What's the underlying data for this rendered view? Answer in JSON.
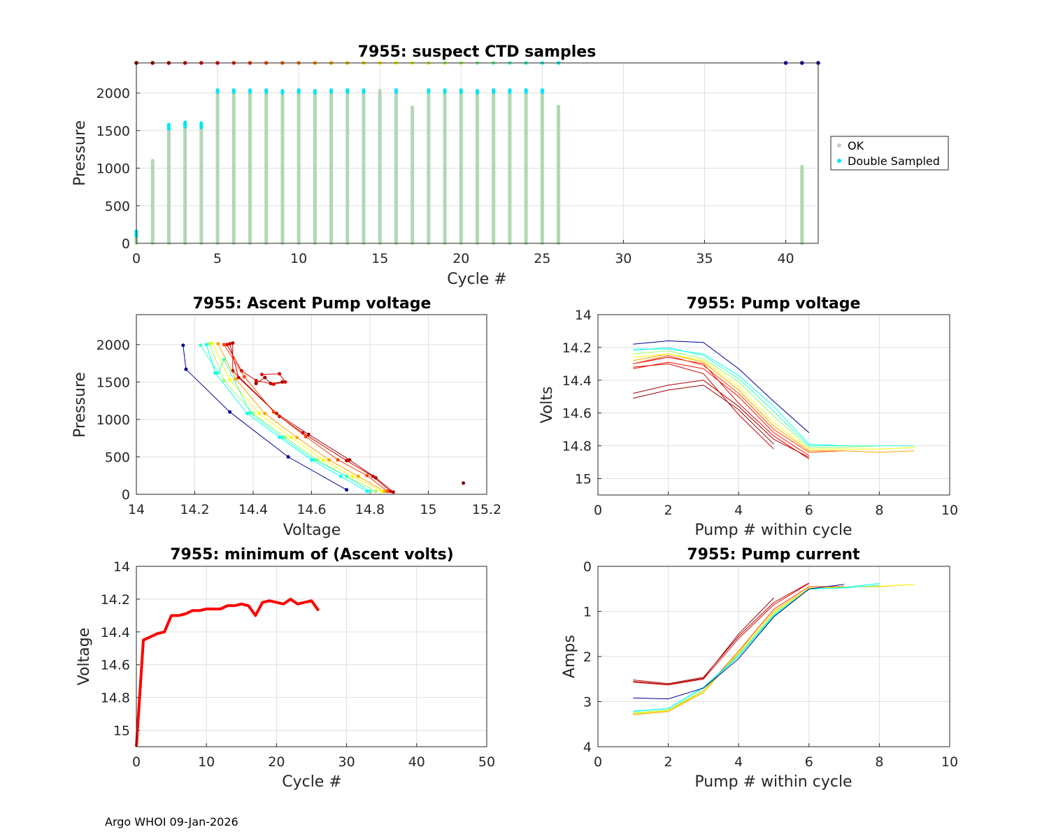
{
  "footer": "Argo WHOI 09-Jan-2026",
  "colors": {
    "ok": "#b2d8b2",
    "double": "#00e5ff",
    "min_line": "#ff0000",
    "grid": "#dfdfdf",
    "axis": "#262626"
  },
  "chart_data": [
    {
      "id": "suspect",
      "type": "scatter",
      "title": "7955: suspect CTD samples",
      "xlabel": "Cycle #",
      "ylabel": "Pressure",
      "xlim": [
        0,
        42
      ],
      "ylim": [
        2400,
        0
      ],
      "xticks": [
        0,
        5,
        10,
        15,
        20,
        25,
        30,
        35,
        40
      ],
      "yticks": [
        0,
        500,
        1000,
        1500,
        2000
      ],
      "legend": {
        "position": "outside-right",
        "entries": [
          "OK",
          "Double Sampled"
        ]
      },
      "ok_profiles": [
        {
          "cycle": 0,
          "max_p": 150
        },
        {
          "cycle": 1,
          "max_p": 1100
        },
        {
          "cycle": 2,
          "max_p": 1560
        },
        {
          "cycle": 3,
          "max_p": 1590
        },
        {
          "cycle": 4,
          "max_p": 1580
        },
        {
          "cycle": 5,
          "max_p": 2030
        },
        {
          "cycle": 6,
          "max_p": 2030
        },
        {
          "cycle": 7,
          "max_p": 2030
        },
        {
          "cycle": 8,
          "max_p": 2030
        },
        {
          "cycle": 9,
          "max_p": 2020
        },
        {
          "cycle": 10,
          "max_p": 2030
        },
        {
          "cycle": 11,
          "max_p": 2020
        },
        {
          "cycle": 12,
          "max_p": 2030
        },
        {
          "cycle": 13,
          "max_p": 2030
        },
        {
          "cycle": 14,
          "max_p": 2030
        },
        {
          "cycle": 15,
          "max_p": 2030
        },
        {
          "cycle": 16,
          "max_p": 2030
        },
        {
          "cycle": 17,
          "max_p": 1810
        },
        {
          "cycle": 18,
          "max_p": 2030
        },
        {
          "cycle": 19,
          "max_p": 2030
        },
        {
          "cycle": 20,
          "max_p": 2030
        },
        {
          "cycle": 21,
          "max_p": 2020
        },
        {
          "cycle": 22,
          "max_p": 2030
        },
        {
          "cycle": 23,
          "max_p": 2030
        },
        {
          "cycle": 24,
          "max_p": 2030
        },
        {
          "cycle": 25,
          "max_p": 2030
        },
        {
          "cycle": 26,
          "max_p": 1820
        },
        {
          "cycle": 41,
          "max_p": 1020
        }
      ],
      "double_sampled": [
        {
          "cycle": 0,
          "p_from": 100,
          "p_to": 160
        },
        {
          "cycle": 2,
          "p_from": 1520,
          "p_to": 1580
        },
        {
          "cycle": 3,
          "p_from": 1550,
          "p_to": 1610
        },
        {
          "cycle": 4,
          "p_from": 1540,
          "p_to": 1600
        },
        {
          "cycle": 5,
          "p_from": 2010,
          "p_to": 2040
        },
        {
          "cycle": 6,
          "p_from": 2010,
          "p_to": 2040
        },
        {
          "cycle": 7,
          "p_from": 2010,
          "p_to": 2040
        },
        {
          "cycle": 8,
          "p_from": 2010,
          "p_to": 2040
        },
        {
          "cycle": 9,
          "p_from": 2000,
          "p_to": 2030
        },
        {
          "cycle": 10,
          "p_from": 2010,
          "p_to": 2040
        },
        {
          "cycle": 11,
          "p_from": 2000,
          "p_to": 2030
        },
        {
          "cycle": 12,
          "p_from": 2010,
          "p_to": 2040
        },
        {
          "cycle": 13,
          "p_from": 2010,
          "p_to": 2040
        },
        {
          "cycle": 14,
          "p_from": 2010,
          "p_to": 2040
        },
        {
          "cycle": 16,
          "p_from": 2010,
          "p_to": 2040
        },
        {
          "cycle": 18,
          "p_from": 2010,
          "p_to": 2040
        },
        {
          "cycle": 19,
          "p_from": 2010,
          "p_to": 2040
        },
        {
          "cycle": 20,
          "p_from": 2010,
          "p_to": 2040
        },
        {
          "cycle": 21,
          "p_from": 2000,
          "p_to": 2030
        },
        {
          "cycle": 22,
          "p_from": 2010,
          "p_to": 2040
        },
        {
          "cycle": 23,
          "p_from": 2010,
          "p_to": 2040
        },
        {
          "cycle": 24,
          "p_from": 2010,
          "p_to": 2040
        },
        {
          "cycle": 25,
          "p_from": 2010,
          "p_to": 2040
        }
      ],
      "cycle_markers": [
        0,
        1,
        2,
        3,
        4,
        5,
        6,
        7,
        8,
        9,
        10,
        11,
        12,
        13,
        14,
        15,
        16,
        17,
        18,
        19,
        20,
        21,
        22,
        23,
        24,
        25,
        26,
        40,
        41,
        42
      ]
    },
    {
      "id": "ascent",
      "type": "line",
      "title": "7955: Ascent Pump voltage",
      "xlabel": "Voltage",
      "ylabel": "Pressure",
      "xlim": [
        14,
        15.2
      ],
      "ylim": [
        2400,
        0
      ],
      "xticks": [
        14,
        14.2,
        14.4,
        14.6,
        14.8,
        15,
        15.2
      ],
      "yticks": [
        0,
        500,
        1000,
        1500,
        2000
      ],
      "series": [
        {
          "cycle": 1,
          "points": [
            [
              14.5,
              1500
            ],
            [
              14.46,
              1480
            ],
            [
              14.44,
              1560
            ],
            [
              14.41,
              1480
            ]
          ]
        },
        {
          "cycle": 2,
          "points": [
            [
              14.33,
              2020
            ],
            [
              14.33,
              1650
            ],
            [
              14.48,
              1080
            ],
            [
              14.59,
              800
            ],
            [
              14.73,
              460
            ],
            [
              14.82,
              220
            ],
            [
              14.88,
              30
            ]
          ]
        },
        {
          "cycle": 3,
          "points": [
            [
              14.32,
              2010
            ],
            [
              14.35,
              1560
            ],
            [
              14.49,
              1040
            ],
            [
              14.57,
              820
            ],
            [
              14.72,
              450
            ],
            [
              14.81,
              240
            ],
            [
              14.87,
              40
            ]
          ]
        },
        {
          "cycle": 4,
          "points": [
            [
              14.31,
              2000
            ],
            [
              14.36,
              1650
            ],
            [
              14.41,
              1520
            ],
            [
              14.47,
              1470
            ],
            [
              14.51,
              1500
            ],
            [
              14.49,
              1610
            ],
            [
              14.43,
              1600
            ]
          ]
        },
        {
          "cycle": 8,
          "points": [
            [
              14.3,
              2000
            ],
            [
              14.37,
              1570
            ],
            [
              14.47,
              1100
            ],
            [
              14.58,
              770
            ],
            [
              14.69,
              460
            ],
            [
              14.79,
              250
            ],
            [
              14.86,
              40
            ]
          ]
        },
        {
          "cycle": 12,
          "points": [
            [
              14.28,
              2010
            ],
            [
              14.34,
              1540
            ],
            [
              14.44,
              1080
            ],
            [
              14.55,
              760
            ],
            [
              14.66,
              460
            ],
            [
              14.76,
              240
            ],
            [
              14.85,
              40
            ]
          ]
        },
        {
          "cycle": 16,
          "points": [
            [
              14.26,
              2020
            ],
            [
              14.32,
              1530
            ],
            [
              14.42,
              1080
            ],
            [
              14.53,
              760
            ],
            [
              14.64,
              460
            ],
            [
              14.74,
              240
            ],
            [
              14.84,
              40
            ]
          ]
        },
        {
          "cycle": 20,
          "points": [
            [
              14.25,
              2010
            ],
            [
              14.3,
              1520
            ],
            [
              14.4,
              1080
            ],
            [
              14.51,
              760
            ],
            [
              14.62,
              460
            ],
            [
              14.72,
              240
            ],
            [
              14.82,
              40
            ]
          ]
        },
        {
          "cycle": 24,
          "points": [
            [
              14.22,
              1990
            ],
            [
              14.28,
              1620
            ],
            [
              14.3,
              1800
            ],
            [
              14.39,
              1090
            ],
            [
              14.5,
              760
            ],
            [
              14.61,
              460
            ],
            [
              14.72,
              240
            ],
            [
              14.8,
              40
            ]
          ]
        },
        {
          "cycle": 26,
          "points": [
            [
              14.24,
              2000
            ],
            [
              14.27,
              1620
            ],
            [
              14.38,
              1080
            ],
            [
              14.49,
              760
            ],
            [
              14.6,
              460
            ],
            [
              14.7,
              240
            ],
            [
              14.79,
              40
            ]
          ]
        },
        {
          "cycle": 41,
          "points": [
            [
              14.16,
              1990
            ],
            [
              14.17,
              1670
            ],
            [
              14.32,
              1100
            ],
            [
              14.52,
              500
            ],
            [
              14.72,
              60
            ]
          ]
        },
        {
          "cycle": 0,
          "points": [
            [
              15.12,
              150
            ]
          ]
        }
      ]
    },
    {
      "id": "pumpv",
      "type": "line",
      "title": "7955: Pump voltage",
      "xlabel": "Pump # within cycle",
      "ylabel": "Volts",
      "xlim": [
        0,
        10
      ],
      "ylim": [
        14,
        15.1
      ],
      "xticks": [
        0,
        2,
        4,
        6,
        8,
        10
      ],
      "yticks": [
        14,
        14.2,
        14.4,
        14.6,
        14.8,
        15
      ],
      "series": [
        {
          "cycle": 1,
          "y": [
            14.51,
            14.46,
            14.43,
            14.58,
            14.79
          ]
        },
        {
          "cycle": 2,
          "y": [
            14.48,
            14.43,
            14.4,
            14.56,
            14.76,
            14.87
          ]
        },
        {
          "cycle": 3,
          "y": [
            14.32,
            14.3,
            14.36,
            14.61,
            14.82
          ]
        },
        {
          "cycle": 4,
          "y": [
            14.3,
            14.26,
            14.3,
            14.54,
            14.74,
            14.88
          ]
        },
        {
          "cycle": 6,
          "y": [
            14.33,
            14.29,
            14.33,
            14.5,
            14.72,
            14.86
          ]
        },
        {
          "cycle": 8,
          "y": [
            14.3,
            14.25,
            14.31,
            14.48,
            14.7,
            14.84,
            14.83
          ]
        },
        {
          "cycle": 12,
          "y": [
            14.28,
            14.24,
            14.29,
            14.46,
            14.68,
            14.83,
            14.83,
            14.84,
            14.83
          ]
        },
        {
          "cycle": 16,
          "y": [
            14.26,
            14.24,
            14.28,
            14.44,
            14.66,
            14.82,
            14.82,
            14.82,
            14.81
          ]
        },
        {
          "cycle": 20,
          "y": [
            14.24,
            14.22,
            14.27,
            14.41,
            14.62,
            14.81,
            14.81,
            14.8
          ]
        },
        {
          "cycle": 24,
          "y": [
            14.22,
            14.2,
            14.25,
            14.39,
            14.59,
            14.8,
            14.8,
            14.8,
            14.8
          ]
        },
        {
          "cycle": 26,
          "y": [
            14.21,
            14.21,
            14.24,
            14.37,
            14.56,
            14.79,
            14.8
          ]
        },
        {
          "cycle": 41,
          "y": [
            14.18,
            14.16,
            14.17,
            14.33,
            14.53,
            14.72
          ]
        }
      ]
    },
    {
      "id": "minv",
      "type": "line",
      "title": "7955: minimum of (Ascent volts)",
      "xlabel": "Cycle #",
      "ylabel": "Voltage",
      "xlim": [
        0,
        50
      ],
      "ylim": [
        14,
        15.1
      ],
      "xticks": [
        0,
        10,
        20,
        30,
        40,
        50
      ],
      "yticks": [
        14,
        14.2,
        14.4,
        14.6,
        14.8,
        15
      ],
      "x": [
        0,
        1,
        2,
        3,
        4,
        5,
        6,
        7,
        8,
        9,
        10,
        11,
        12,
        13,
        14,
        15,
        16,
        17,
        18,
        19,
        20,
        21,
        22,
        23,
        24,
        25,
        26
      ],
      "y": [
        15.12,
        14.45,
        14.43,
        14.41,
        14.4,
        14.3,
        14.3,
        14.29,
        14.27,
        14.27,
        14.26,
        14.26,
        14.26,
        14.24,
        14.24,
        14.23,
        14.24,
        14.3,
        14.22,
        14.21,
        14.22,
        14.23,
        14.2,
        14.23,
        14.22,
        14.21,
        14.27
      ]
    },
    {
      "id": "pumpc",
      "type": "line",
      "title": "7955: Pump current",
      "xlabel": "Pump # within cycle",
      "ylabel": "Amps",
      "xlim": [
        0,
        10
      ],
      "ylim": [
        0,
        4
      ],
      "xticks": [
        0,
        2,
        4,
        6,
        8,
        10
      ],
      "yticks": [
        0,
        1,
        2,
        3,
        4
      ],
      "series": [
        {
          "cycle": 1,
          "y": [
            2.55,
            2.62,
            2.48,
            1.5,
            0.7
          ]
        },
        {
          "cycle": 2,
          "y": [
            2.52,
            2.6,
            2.46,
            1.55,
            0.8,
            0.37
          ]
        },
        {
          "cycle": 4,
          "y": [
            2.57,
            2.63,
            2.5,
            1.6,
            0.85,
            0.38
          ]
        },
        {
          "cycle": 8,
          "y": [
            3.27,
            3.2,
            2.75,
            1.88,
            0.95,
            0.45,
            0.45
          ]
        },
        {
          "cycle": 12,
          "y": [
            3.29,
            3.22,
            2.8,
            1.92,
            1.0,
            0.48,
            0.46,
            0.45,
            0.4
          ]
        },
        {
          "cycle": 16,
          "y": [
            3.27,
            3.2,
            2.78,
            1.9,
            1.02,
            0.48,
            0.46,
            0.44,
            0.4
          ]
        },
        {
          "cycle": 20,
          "y": [
            3.25,
            3.18,
            2.75,
            1.95,
            1.05,
            0.5,
            0.47,
            0.43
          ]
        },
        {
          "cycle": 24,
          "y": [
            3.22,
            3.15,
            2.7,
            2.0,
            1.1,
            0.5,
            0.48,
            0.42
          ]
        },
        {
          "cycle": 26,
          "y": [
            3.21,
            3.15,
            2.68,
            1.98,
            1.08,
            0.51,
            0.47,
            0.38
          ]
        },
        {
          "cycle": 41,
          "y": [
            2.92,
            2.94,
            2.7,
            2.05,
            1.12,
            0.5,
            0.4
          ]
        }
      ]
    }
  ]
}
